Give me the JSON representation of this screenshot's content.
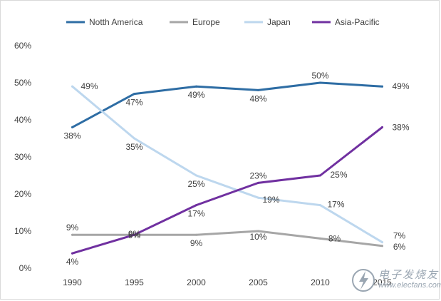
{
  "chart_data": {
    "type": "line",
    "title": "",
    "xlabel": "",
    "ylabel": "",
    "categories": [
      "1990",
      "1995",
      "2000",
      "2005",
      "2010",
      "2015"
    ],
    "ylim": [
      0,
      60
    ],
    "yticks": [
      "0%",
      "10%",
      "20%",
      "30%",
      "40%",
      "50%",
      "60%"
    ],
    "yticks_values": [
      0,
      10,
      20,
      30,
      40,
      50,
      60
    ],
    "legend_position": "top",
    "grid": false,
    "series": [
      {
        "name": "Notth America",
        "color": "#2e6da4",
        "values": [
          38,
          47,
          49,
          48,
          50,
          49
        ],
        "labels": [
          "38%",
          "47%",
          "49%",
          "48%",
          "50%",
          "49%"
        ]
      },
      {
        "name": "Europe",
        "color": "#a6a6a6",
        "values": [
          9,
          9,
          9,
          10,
          8,
          6
        ],
        "labels": [
          "9%",
          "9%",
          "9%",
          "10%",
          "8%",
          "6%"
        ]
      },
      {
        "name": "Japan",
        "color": "#bdd7ee",
        "values": [
          49,
          35,
          25,
          19,
          17,
          7
        ],
        "labels": [
          "49%",
          "35%",
          "25%",
          "19%",
          "17%",
          "7%"
        ]
      },
      {
        "name": "Asia-Pacific",
        "color": "#7030a0",
        "values": [
          4,
          9,
          17,
          23,
          25,
          38
        ],
        "labels": [
          "4%",
          "9%",
          "17%",
          "23%",
          "25%",
          "38%"
        ]
      }
    ]
  },
  "watermark": {
    "text": "电子发烧友",
    "url": "www.elecfans.com"
  }
}
